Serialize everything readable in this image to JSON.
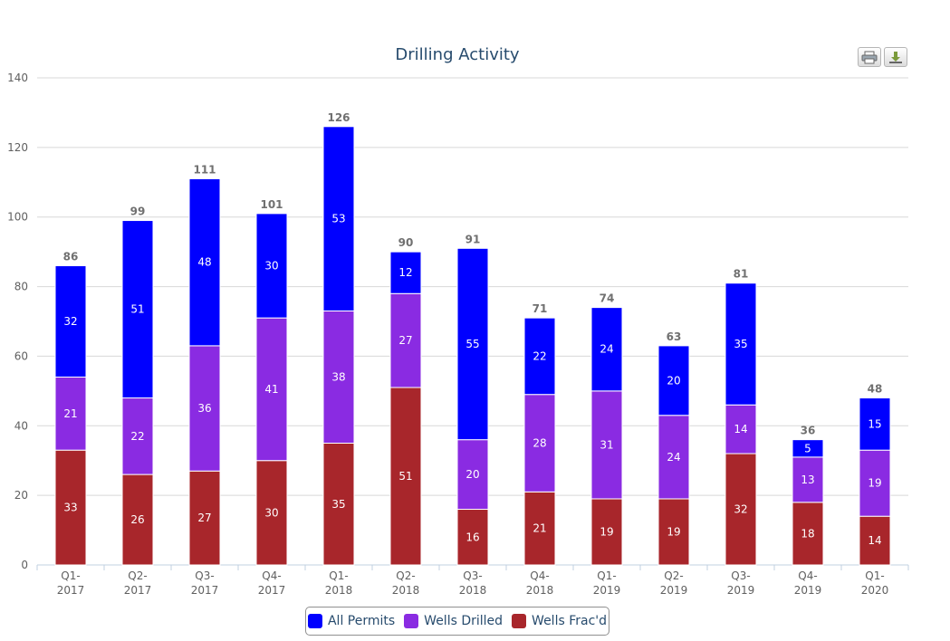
{
  "toolbar": {
    "print_icon": "printer-icon",
    "export_icon": "download-icon"
  },
  "chart_data": {
    "type": "bar",
    "stacked": true,
    "title": "Drilling Activity",
    "xlabel": "",
    "ylabel": "",
    "ylim": [
      0,
      140
    ],
    "yticks": [
      0,
      20,
      40,
      60,
      80,
      100,
      120,
      140
    ],
    "grid": true,
    "legend_position": "bottom-center",
    "categories": [
      "Q1-2017",
      "Q2-2017",
      "Q3-2017",
      "Q4-2017",
      "Q1-2018",
      "Q2-2018",
      "Q3-2018",
      "Q4-2018",
      "Q1-2019",
      "Q2-2019",
      "Q3-2019",
      "Q4-2019",
      "Q1-2020"
    ],
    "series": [
      {
        "name": "Wells Frac'd",
        "color": "#a8262b",
        "values": [
          33,
          26,
          27,
          30,
          35,
          51,
          16,
          21,
          19,
          19,
          32,
          18,
          14
        ]
      },
      {
        "name": "Wells Drilled",
        "color": "#8a2be2",
        "values": [
          21,
          22,
          36,
          41,
          38,
          27,
          20,
          28,
          31,
          24,
          14,
          13,
          19
        ]
      },
      {
        "name": "All Permits",
        "color": "#0000ff",
        "values": [
          32,
          51,
          48,
          30,
          53,
          12,
          55,
          22,
          24,
          20,
          35,
          5,
          15
        ]
      }
    ],
    "totals": [
      86,
      99,
      111,
      101,
      126,
      90,
      91,
      71,
      74,
      63,
      81,
      36,
      48
    ],
    "legend_order": [
      "All Permits",
      "Wells Drilled",
      "Wells Frac'd"
    ]
  }
}
